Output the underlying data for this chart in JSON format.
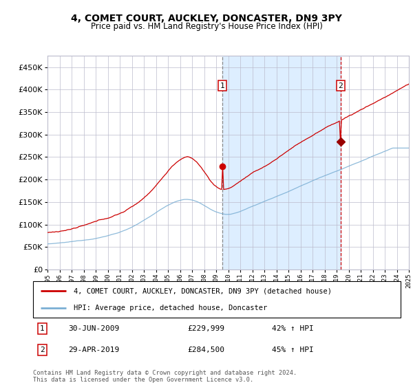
{
  "title": "4, COMET COURT, AUCKLEY, DONCASTER, DN9 3PY",
  "subtitle": "Price paid vs. HM Land Registry's House Price Index (HPI)",
  "legend_line1": "4, COMET COURT, AUCKLEY, DONCASTER, DN9 3PY (detached house)",
  "legend_line2": "HPI: Average price, detached house, Doncaster",
  "ann1_date": "30-JUN-2009",
  "ann1_price": "£229,999",
  "ann1_pct": "42% ↑ HPI",
  "ann2_date": "29-APR-2019",
  "ann2_price": "£284,500",
  "ann2_pct": "45% ↑ HPI",
  "footer": "Contains HM Land Registry data © Crown copyright and database right 2024.\nThis data is licensed under the Open Government Licence v3.0.",
  "red_color": "#cc0000",
  "blue_color": "#7bafd4",
  "shading_color": "#ddeeff",
  "grid_color": "#bbbbcc",
  "background_color": "#ffffff",
  "year_start": 1995,
  "year_end": 2025,
  "ylim_max": 475000,
  "yticks": [
    0,
    50000,
    100000,
    150000,
    200000,
    250000,
    300000,
    350000,
    400000,
    450000
  ],
  "t1": 2009.5,
  "t2": 2019.33,
  "val1": 229999,
  "val2": 284500
}
